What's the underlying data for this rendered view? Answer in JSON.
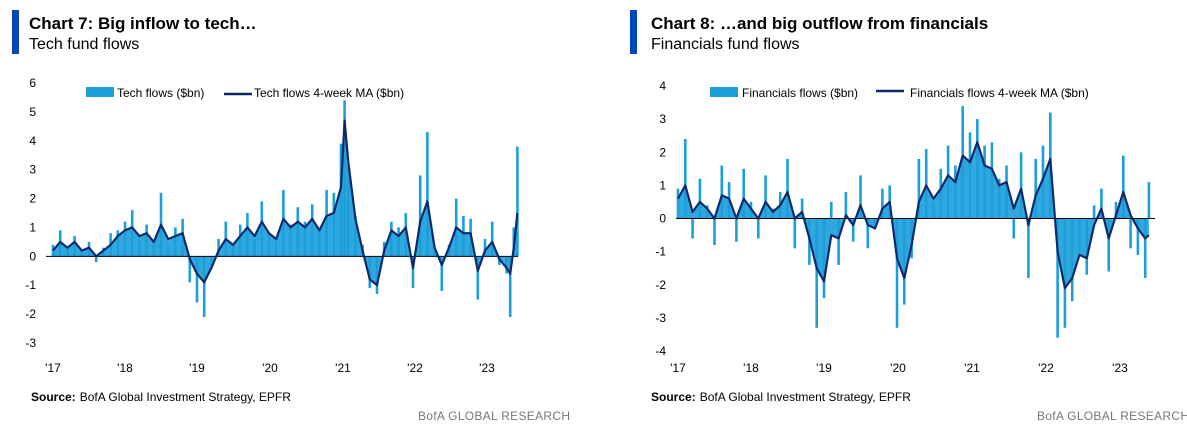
{
  "colors": {
    "accent": "#0047bb",
    "bar": "#1a9fdb",
    "ma_line": "#0c2a6b",
    "zero_line": "#000000"
  },
  "source_label": "Source:",
  "brand": "BofA GLOBAL RESEARCH",
  "chart_data": [
    {
      "type": "bar",
      "title": "Chart 7: Big inflow to tech…",
      "subtitle": "Tech fund flows",
      "source": "BofA Global Investment Strategy, EPFR",
      "ylim": [
        -3,
        6
      ],
      "yticks": [
        "6",
        "5",
        "4",
        "3",
        "2",
        "1",
        "0",
        "-1",
        "-2",
        "-3"
      ],
      "xticks": [
        "'17",
        "'18",
        "'19",
        "'20",
        "'21",
        "'22",
        "'23"
      ],
      "x_start": 2017.0,
      "x_end": 2023.9,
      "legend_position": "top",
      "series": [
        {
          "name": "Tech flows ($bn)",
          "type": "bar",
          "x": [
            2017.0,
            2017.1,
            2017.2,
            2017.3,
            2017.4,
            2017.5,
            2017.6,
            2017.7,
            2017.8,
            2017.9,
            2018.0,
            2018.1,
            2018.2,
            2018.3,
            2018.4,
            2018.5,
            2018.6,
            2018.7,
            2018.8,
            2018.9,
            2019.0,
            2019.1,
            2019.2,
            2019.3,
            2019.4,
            2019.5,
            2019.6,
            2019.7,
            2019.8,
            2019.9,
            2020.0,
            2020.1,
            2020.2,
            2020.3,
            2020.4,
            2020.5,
            2020.6,
            2020.7,
            2020.8,
            2020.9,
            2021.0,
            2021.05,
            2021.1,
            2021.2,
            2021.3,
            2021.4,
            2021.5,
            2021.6,
            2021.7,
            2021.8,
            2021.9,
            2022.0,
            2022.1,
            2022.2,
            2022.3,
            2022.4,
            2022.5,
            2022.6,
            2022.7,
            2022.8,
            2022.9,
            2023.0,
            2023.1,
            2023.2,
            2023.3,
            2023.35,
            2023.4,
            2023.45
          ],
          "values": [
            0.4,
            0.9,
            0.3,
            0.7,
            0.2,
            0.5,
            -0.2,
            0.3,
            0.8,
            0.9,
            1.2,
            1.6,
            0.6,
            1.1,
            0.5,
            2.2,
            0.4,
            1.0,
            1.3,
            -0.9,
            -1.6,
            -2.1,
            -0.3,
            0.6,
            1.2,
            0.4,
            1.1,
            1.5,
            0.6,
            1.9,
            0.8,
            0.5,
            2.3,
            1.1,
            1.7,
            1.2,
            1.8,
            0.9,
            2.3,
            2.2,
            3.9,
            5.4,
            3.2,
            1.4,
            0.4,
            -1.1,
            -1.3,
            0.5,
            1.2,
            1.0,
            1.5,
            -1.1,
            2.8,
            4.3,
            0.2,
            -1.2,
            0.4,
            2.0,
            1.4,
            1.3,
            -1.5,
            0.6,
            1.2,
            -0.3,
            -0.6,
            -2.1,
            1.0,
            3.8
          ]
        },
        {
          "name": "Tech flows 4-week MA ($bn)",
          "type": "line",
          "x": [
            2017.0,
            2017.1,
            2017.2,
            2017.3,
            2017.4,
            2017.5,
            2017.6,
            2017.7,
            2017.8,
            2017.9,
            2018.0,
            2018.1,
            2018.2,
            2018.3,
            2018.4,
            2018.5,
            2018.6,
            2018.7,
            2018.8,
            2018.9,
            2019.0,
            2019.1,
            2019.2,
            2019.3,
            2019.4,
            2019.5,
            2019.6,
            2019.7,
            2019.8,
            2019.9,
            2020.0,
            2020.1,
            2020.2,
            2020.3,
            2020.4,
            2020.5,
            2020.6,
            2020.7,
            2020.8,
            2020.9,
            2021.0,
            2021.05,
            2021.1,
            2021.2,
            2021.3,
            2021.4,
            2021.5,
            2021.6,
            2021.7,
            2021.8,
            2021.9,
            2022.0,
            2022.1,
            2022.2,
            2022.3,
            2022.4,
            2022.5,
            2022.6,
            2022.7,
            2022.8,
            2022.9,
            2023.0,
            2023.1,
            2023.2,
            2023.3,
            2023.35,
            2023.4,
            2023.45
          ],
          "values": [
            0.2,
            0.5,
            0.3,
            0.5,
            0.2,
            0.3,
            0.0,
            0.2,
            0.4,
            0.7,
            0.9,
            1.0,
            0.7,
            0.8,
            0.5,
            1.1,
            0.6,
            0.7,
            0.8,
            -0.1,
            -0.6,
            -0.9,
            -0.4,
            0.2,
            0.6,
            0.4,
            0.7,
            1.0,
            0.7,
            1.2,
            0.8,
            0.6,
            1.3,
            1.0,
            1.2,
            1.0,
            1.3,
            0.9,
            1.4,
            1.5,
            2.4,
            4.7,
            3.3,
            1.3,
            0.2,
            -0.8,
            -1.0,
            0.2,
            0.9,
            0.7,
            1.0,
            -0.4,
            1.2,
            1.9,
            0.3,
            -0.3,
            0.3,
            1.0,
            0.8,
            0.8,
            -0.5,
            0.2,
            0.5,
            -0.1,
            -0.4,
            -0.6,
            0.3,
            1.5
          ]
        }
      ]
    },
    {
      "type": "bar",
      "title": "Chart 8: …and big outflow from financials",
      "subtitle": "Financials fund flows",
      "source": "BofA Global Investment Strategy, EPFR",
      "ylim": [
        -4,
        4
      ],
      "yticks": [
        "4",
        "3",
        "2",
        "1",
        "0",
        "-1",
        "-2",
        "-3",
        "-4"
      ],
      "xticks": [
        "'17",
        "'18",
        "'19",
        "'20",
        "'21",
        "'22",
        "'23"
      ],
      "x_start": 2017.0,
      "x_end": 2023.6,
      "legend_position": "top",
      "series": [
        {
          "name": "Financials flows ($bn)",
          "type": "bar",
          "x": [
            2017.0,
            2017.1,
            2017.2,
            2017.3,
            2017.4,
            2017.5,
            2017.6,
            2017.7,
            2017.8,
            2017.9,
            2018.0,
            2018.1,
            2018.2,
            2018.3,
            2018.4,
            2018.5,
            2018.6,
            2018.7,
            2018.8,
            2018.9,
            2019.0,
            2019.1,
            2019.2,
            2019.3,
            2019.4,
            2019.5,
            2019.6,
            2019.7,
            2019.8,
            2019.9,
            2020.0,
            2020.1,
            2020.2,
            2020.3,
            2020.4,
            2020.5,
            2020.6,
            2020.7,
            2020.8,
            2020.9,
            2021.0,
            2021.1,
            2021.2,
            2021.3,
            2021.4,
            2021.5,
            2021.6,
            2021.7,
            2021.8,
            2021.9,
            2022.0,
            2022.1,
            2022.2,
            2022.3,
            2022.4,
            2022.5,
            2022.6,
            2022.7,
            2022.8,
            2022.9,
            2023.0,
            2023.1,
            2023.2,
            2023.3,
            2023.4,
            2023.45
          ],
          "values": [
            0.9,
            2.4,
            -0.6,
            1.2,
            0.4,
            -0.8,
            1.6,
            1.1,
            -0.7,
            1.5,
            0.5,
            -0.6,
            1.3,
            0.3,
            0.8,
            1.8,
            -0.9,
            0.6,
            -1.4,
            -3.3,
            -2.4,
            0.5,
            -1.4,
            0.8,
            -0.7,
            1.3,
            -0.9,
            -0.2,
            0.9,
            1.0,
            -3.3,
            -2.6,
            -1.2,
            1.8,
            2.1,
            0.5,
            1.5,
            2.2,
            1.6,
            3.4,
            2.6,
            3.0,
            2.2,
            2.3,
            1.2,
            1.6,
            -0.6,
            2.0,
            -1.8,
            1.8,
            2.2,
            3.2,
            -3.6,
            -3.3,
            -2.5,
            -1.0,
            -1.7,
            0.4,
            0.9,
            -1.6,
            0.5,
            1.9,
            -0.9,
            -1.1,
            -1.8,
            1.1
          ]
        },
        {
          "name": "Financials flows 4-week MA ($bn)",
          "type": "line",
          "x": [
            2017.0,
            2017.1,
            2017.2,
            2017.3,
            2017.4,
            2017.5,
            2017.6,
            2017.7,
            2017.8,
            2017.9,
            2018.0,
            2018.1,
            2018.2,
            2018.3,
            2018.4,
            2018.5,
            2018.6,
            2018.7,
            2018.8,
            2018.9,
            2019.0,
            2019.1,
            2019.2,
            2019.3,
            2019.4,
            2019.5,
            2019.6,
            2019.7,
            2019.8,
            2019.9,
            2020.0,
            2020.1,
            2020.2,
            2020.3,
            2020.4,
            2020.5,
            2020.6,
            2020.7,
            2020.8,
            2020.9,
            2021.0,
            2021.1,
            2021.2,
            2021.3,
            2021.4,
            2021.5,
            2021.6,
            2021.7,
            2021.8,
            2021.9,
            2022.0,
            2022.1,
            2022.2,
            2022.3,
            2022.4,
            2022.5,
            2022.6,
            2022.7,
            2022.8,
            2022.9,
            2023.0,
            2023.1,
            2023.2,
            2023.3,
            2023.4,
            2023.45
          ],
          "values": [
            0.6,
            1.0,
            0.2,
            0.5,
            0.3,
            0.0,
            0.7,
            0.6,
            0.0,
            0.6,
            0.3,
            0.0,
            0.5,
            0.2,
            0.4,
            0.8,
            0.0,
            0.2,
            -0.6,
            -1.5,
            -1.9,
            -0.5,
            -0.6,
            0.1,
            -0.2,
            0.4,
            -0.2,
            -0.3,
            0.3,
            0.5,
            -1.2,
            -1.8,
            -0.8,
            0.5,
            1.0,
            0.6,
            0.9,
            1.3,
            1.1,
            1.9,
            1.7,
            2.3,
            1.6,
            1.5,
            1.0,
            1.1,
            0.3,
            0.9,
            -0.2,
            0.7,
            1.2,
            1.8,
            -1.0,
            -2.1,
            -1.8,
            -1.1,
            -1.2,
            -0.2,
            0.3,
            -0.6,
            0.1,
            0.8,
            0.1,
            -0.3,
            -0.6,
            -0.5
          ]
        }
      ]
    }
  ]
}
